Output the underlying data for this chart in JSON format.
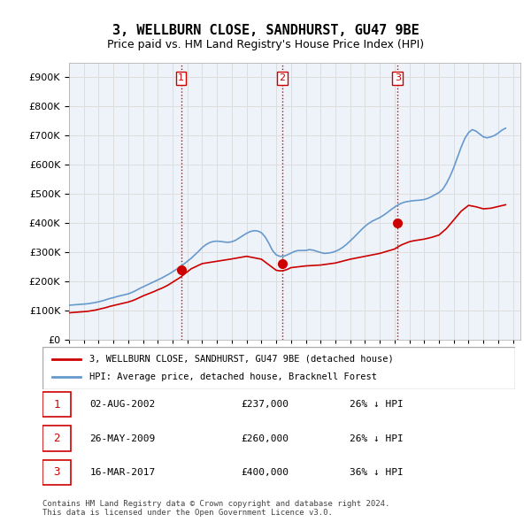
{
  "title": "3, WELLBURN CLOSE, SANDHURST, GU47 9BE",
  "subtitle": "Price paid vs. HM Land Registry's House Price Index (HPI)",
  "ylabel_ticks": [
    "£0",
    "£100K",
    "£200K",
    "£300K",
    "£400K",
    "£500K",
    "£600K",
    "£700K",
    "£800K",
    "£900K"
  ],
  "ytick_values": [
    0,
    100000,
    200000,
    300000,
    400000,
    500000,
    600000,
    700000,
    800000,
    900000
  ],
  "ylim": [
    0,
    950000
  ],
  "xlim_start": 1995.0,
  "xlim_end": 2025.5,
  "hpi_color": "#6699cc",
  "sale_color": "#cc0000",
  "sale_marker_color": "#cc0000",
  "vline_color": "#cc0000",
  "grid_color": "#dddddd",
  "bg_color": "#eef3fa",
  "legend_label_sale": "3, WELLBURN CLOSE, SANDHURST, GU47 9BE (detached house)",
  "legend_label_hpi": "HPI: Average price, detached house, Bracknell Forest",
  "sales": [
    {
      "num": 1,
      "date": 2002.58,
      "price": 237000,
      "label": "1",
      "text": "02-AUG-2002",
      "price_str": "£237,000",
      "hpi_str": "26% ↓ HPI"
    },
    {
      "num": 2,
      "date": 2009.4,
      "price": 260000,
      "label": "2",
      "text": "26-MAY-2009",
      "price_str": "£260,000",
      "hpi_str": "26% ↓ HPI"
    },
    {
      "num": 3,
      "date": 2017.2,
      "price": 400000,
      "label": "3",
      "text": "16-MAR-2017",
      "price_str": "£400,000",
      "hpi_str": "36% ↓ HPI"
    }
  ],
  "footer": "Contains HM Land Registry data © Crown copyright and database right 2024.\nThis data is licensed under the Open Government Licence v3.0.",
  "hpi_data_x": [
    1995.0,
    1995.25,
    1995.5,
    1995.75,
    1996.0,
    1996.25,
    1996.5,
    1996.75,
    1997.0,
    1997.25,
    1997.5,
    1997.75,
    1998.0,
    1998.25,
    1998.5,
    1998.75,
    1999.0,
    1999.25,
    1999.5,
    1999.75,
    2000.0,
    2000.25,
    2000.5,
    2000.75,
    2001.0,
    2001.25,
    2001.5,
    2001.75,
    2002.0,
    2002.25,
    2002.5,
    2002.75,
    2003.0,
    2003.25,
    2003.5,
    2003.75,
    2004.0,
    2004.25,
    2004.5,
    2004.75,
    2005.0,
    2005.25,
    2005.5,
    2005.75,
    2006.0,
    2006.25,
    2006.5,
    2006.75,
    2007.0,
    2007.25,
    2007.5,
    2007.75,
    2008.0,
    2008.25,
    2008.5,
    2008.75,
    2009.0,
    2009.25,
    2009.5,
    2009.75,
    2010.0,
    2010.25,
    2010.5,
    2010.75,
    2011.0,
    2011.25,
    2011.5,
    2011.75,
    2012.0,
    2012.25,
    2012.5,
    2012.75,
    2013.0,
    2013.25,
    2013.5,
    2013.75,
    2014.0,
    2014.25,
    2014.5,
    2014.75,
    2015.0,
    2015.25,
    2015.5,
    2015.75,
    2016.0,
    2016.25,
    2016.5,
    2016.75,
    2017.0,
    2017.25,
    2017.5,
    2017.75,
    2018.0,
    2018.25,
    2018.5,
    2018.75,
    2019.0,
    2019.25,
    2019.5,
    2019.75,
    2020.0,
    2020.25,
    2020.5,
    2020.75,
    2021.0,
    2021.25,
    2021.5,
    2021.75,
    2022.0,
    2022.25,
    2022.5,
    2022.75,
    2023.0,
    2023.25,
    2023.5,
    2023.75,
    2024.0,
    2024.25,
    2024.5
  ],
  "hpi_data_y": [
    117000,
    118000,
    119000,
    120000,
    121000,
    122000,
    124000,
    126000,
    129000,
    132000,
    136000,
    140000,
    143000,
    147000,
    150000,
    153000,
    156000,
    161000,
    167000,
    174000,
    180000,
    186000,
    192000,
    198000,
    204000,
    210000,
    217000,
    224000,
    232000,
    240000,
    248000,
    258000,
    268000,
    278000,
    290000,
    302000,
    315000,
    325000,
    332000,
    336000,
    337000,
    336000,
    334000,
    333000,
    335000,
    340000,
    348000,
    356000,
    364000,
    370000,
    373000,
    372000,
    366000,
    352000,
    330000,
    305000,
    290000,
    285000,
    285000,
    290000,
    296000,
    302000,
    305000,
    305000,
    305000,
    308000,
    306000,
    302000,
    298000,
    295000,
    296000,
    298000,
    302000,
    308000,
    316000,
    326000,
    338000,
    350000,
    363000,
    376000,
    388000,
    398000,
    406000,
    412000,
    418000,
    426000,
    435000,
    445000,
    454000,
    462000,
    468000,
    472000,
    474000,
    476000,
    477000,
    478000,
    480000,
    484000,
    490000,
    497000,
    504000,
    515000,
    535000,
    560000,
    590000,
    625000,
    660000,
    690000,
    710000,
    720000,
    715000,
    705000,
    695000,
    692000,
    695000,
    700000,
    708000,
    718000,
    725000
  ],
  "sale_hpi_data_x": [
    1995.0,
    1995.25,
    1995.5,
    1995.75,
    1996.0,
    1996.25,
    1996.5,
    1996.75,
    1997.0,
    1997.25,
    1997.5,
    1997.75,
    1998.0,
    1998.25,
    1998.5,
    1998.75,
    1999.0,
    1999.25,
    1999.5,
    1999.75,
    2000.0,
    2000.25,
    2000.5,
    2000.75,
    2001.0,
    2001.25,
    2001.5,
    2001.75,
    2002.0,
    2002.25,
    2002.5,
    2002.75,
    2003.0,
    2003.25,
    2004.0,
    2005.0,
    2006.0,
    2007.0,
    2008.0,
    2009.0,
    2009.25,
    2009.5,
    2009.75,
    2010.0,
    2011.0,
    2012.0,
    2013.0,
    2014.0,
    2015.0,
    2016.0,
    2017.0,
    2017.25,
    2017.5,
    2017.75,
    2018.0,
    2018.25,
    2018.5,
    2018.75,
    2019.0,
    2019.25,
    2019.5,
    2019.75,
    2020.0,
    2020.5,
    2021.0,
    2021.5,
    2022.0,
    2022.5,
    2023.0,
    2023.5,
    2024.0,
    2024.5
  ],
  "sale_hpi_data_y": [
    91000,
    92000,
    93000,
    94000,
    95000,
    96000,
    98000,
    100000,
    103000,
    106000,
    109000,
    113000,
    116000,
    119000,
    122000,
    125000,
    128000,
    132000,
    137000,
    143000,
    149000,
    154000,
    159000,
    164000,
    170000,
    175000,
    181000,
    188000,
    196000,
    204000,
    212000,
    222000,
    232000,
    242000,
    260000,
    268000,
    276000,
    285000,
    275000,
    237000,
    235000,
    236000,
    240000,
    246000,
    252000,
    255000,
    262000,
    275000,
    285000,
    295000,
    310000,
    318000,
    325000,
    330000,
    335000,
    338000,
    340000,
    342000,
    344000,
    347000,
    350000,
    354000,
    358000,
    380000,
    410000,
    440000,
    460000,
    455000,
    448000,
    450000,
    456000,
    462000
  ]
}
